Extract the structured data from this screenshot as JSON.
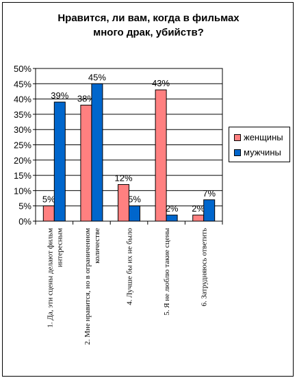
{
  "chart_data": {
    "type": "bar",
    "title_lines": [
      "Нравится, ли вам, когда в фильмах",
      "много драк, убийств?"
    ],
    "xlabel": "",
    "ylabel": "",
    "ylim": [
      0,
      50
    ],
    "yticks": [
      "0%",
      "5%",
      "10%",
      "15%",
      "20%",
      "25%",
      "30%",
      "35%",
      "40%",
      "45%",
      "50%"
    ],
    "grid": true,
    "legend_position": "right",
    "categories": [
      [
        "1. Да, эти сцены делают фильм",
        "интересным"
      ],
      [
        "2. Мне нравится, но в ограниченном",
        "количестве"
      ],
      [
        "4. Лучше бы их не было"
      ],
      [
        "5. Я не люблю такие сцены"
      ],
      [
        "6. Затрудняюсь ответить"
      ]
    ],
    "series": [
      {
        "name": "женщины",
        "color": "#ff8080",
        "values": [
          5,
          38,
          12,
          43,
          2
        ],
        "labels": [
          "5%",
          "38%",
          "12%",
          "43%",
          "2%"
        ]
      },
      {
        "name": "мужчины",
        "color": "#0066cc",
        "values": [
          39,
          45,
          5,
          2,
          7
        ],
        "labels": [
          "39%",
          "45%",
          "5%",
          "2%",
          "7%"
        ]
      }
    ]
  }
}
